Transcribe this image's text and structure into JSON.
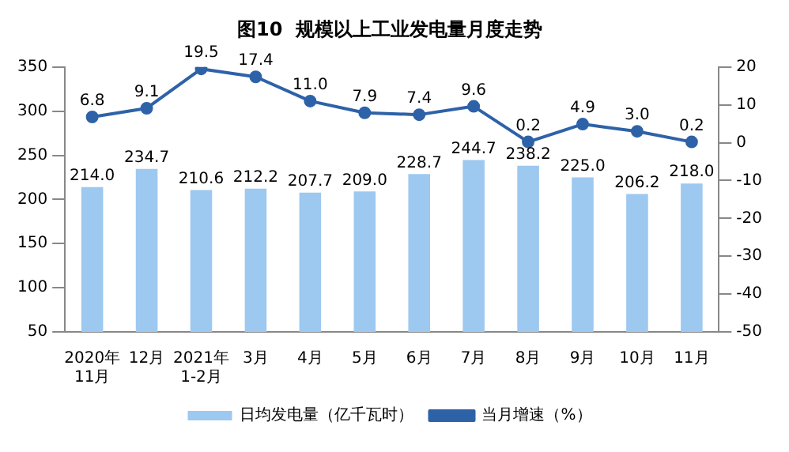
{
  "chart_data": {
    "type": "bar",
    "title": "图10  规模以上工业发电量月度走势",
    "categories": [
      "2020年\n11月",
      "12月",
      "2021年\n1-2月",
      "3月",
      "4月",
      "5月",
      "6月",
      "7月",
      "8月",
      "9月",
      "10月",
      "11月"
    ],
    "series": [
      {
        "name": "日均发电量（亿千瓦时）",
        "color": "#9dc8f0",
        "values": [
          214.0,
          234.7,
          210.6,
          212.2,
          207.7,
          209.0,
          228.7,
          244.7,
          238.2,
          225.0,
          206.2,
          218.0
        ],
        "value_labels": [
          "214.0",
          "234.7",
          "210.6",
          "212.2",
          "207.7",
          "209.0",
          "228.7",
          "244.7",
          "238.2",
          "225.0",
          "206.2",
          "218.0"
        ]
      },
      {
        "name": "当月增速（%）",
        "type": "line",
        "axis": "y2",
        "color": "#2e62a8",
        "values": [
          6.8,
          9.1,
          19.5,
          17.4,
          11.0,
          7.9,
          7.4,
          9.6,
          0.2,
          4.9,
          3.0,
          0.2
        ],
        "value_labels": [
          "6.8",
          "9.1",
          "19.5",
          "17.4",
          "11.0",
          "7.9",
          "7.4",
          "9.6",
          "0.2",
          "4.9",
          "3.0",
          "0.2"
        ]
      }
    ],
    "ylim": [
      50,
      350
    ],
    "yticks": [
      50,
      100,
      150,
      200,
      250,
      300,
      350
    ],
    "y2lim": [
      -50,
      20
    ],
    "y2ticks": [
      -50,
      -40,
      -30,
      -20,
      -10,
      0,
      10,
      20
    ],
    "grid": false,
    "legend": "bottom",
    "marker": "circle",
    "line_style": "solid"
  }
}
